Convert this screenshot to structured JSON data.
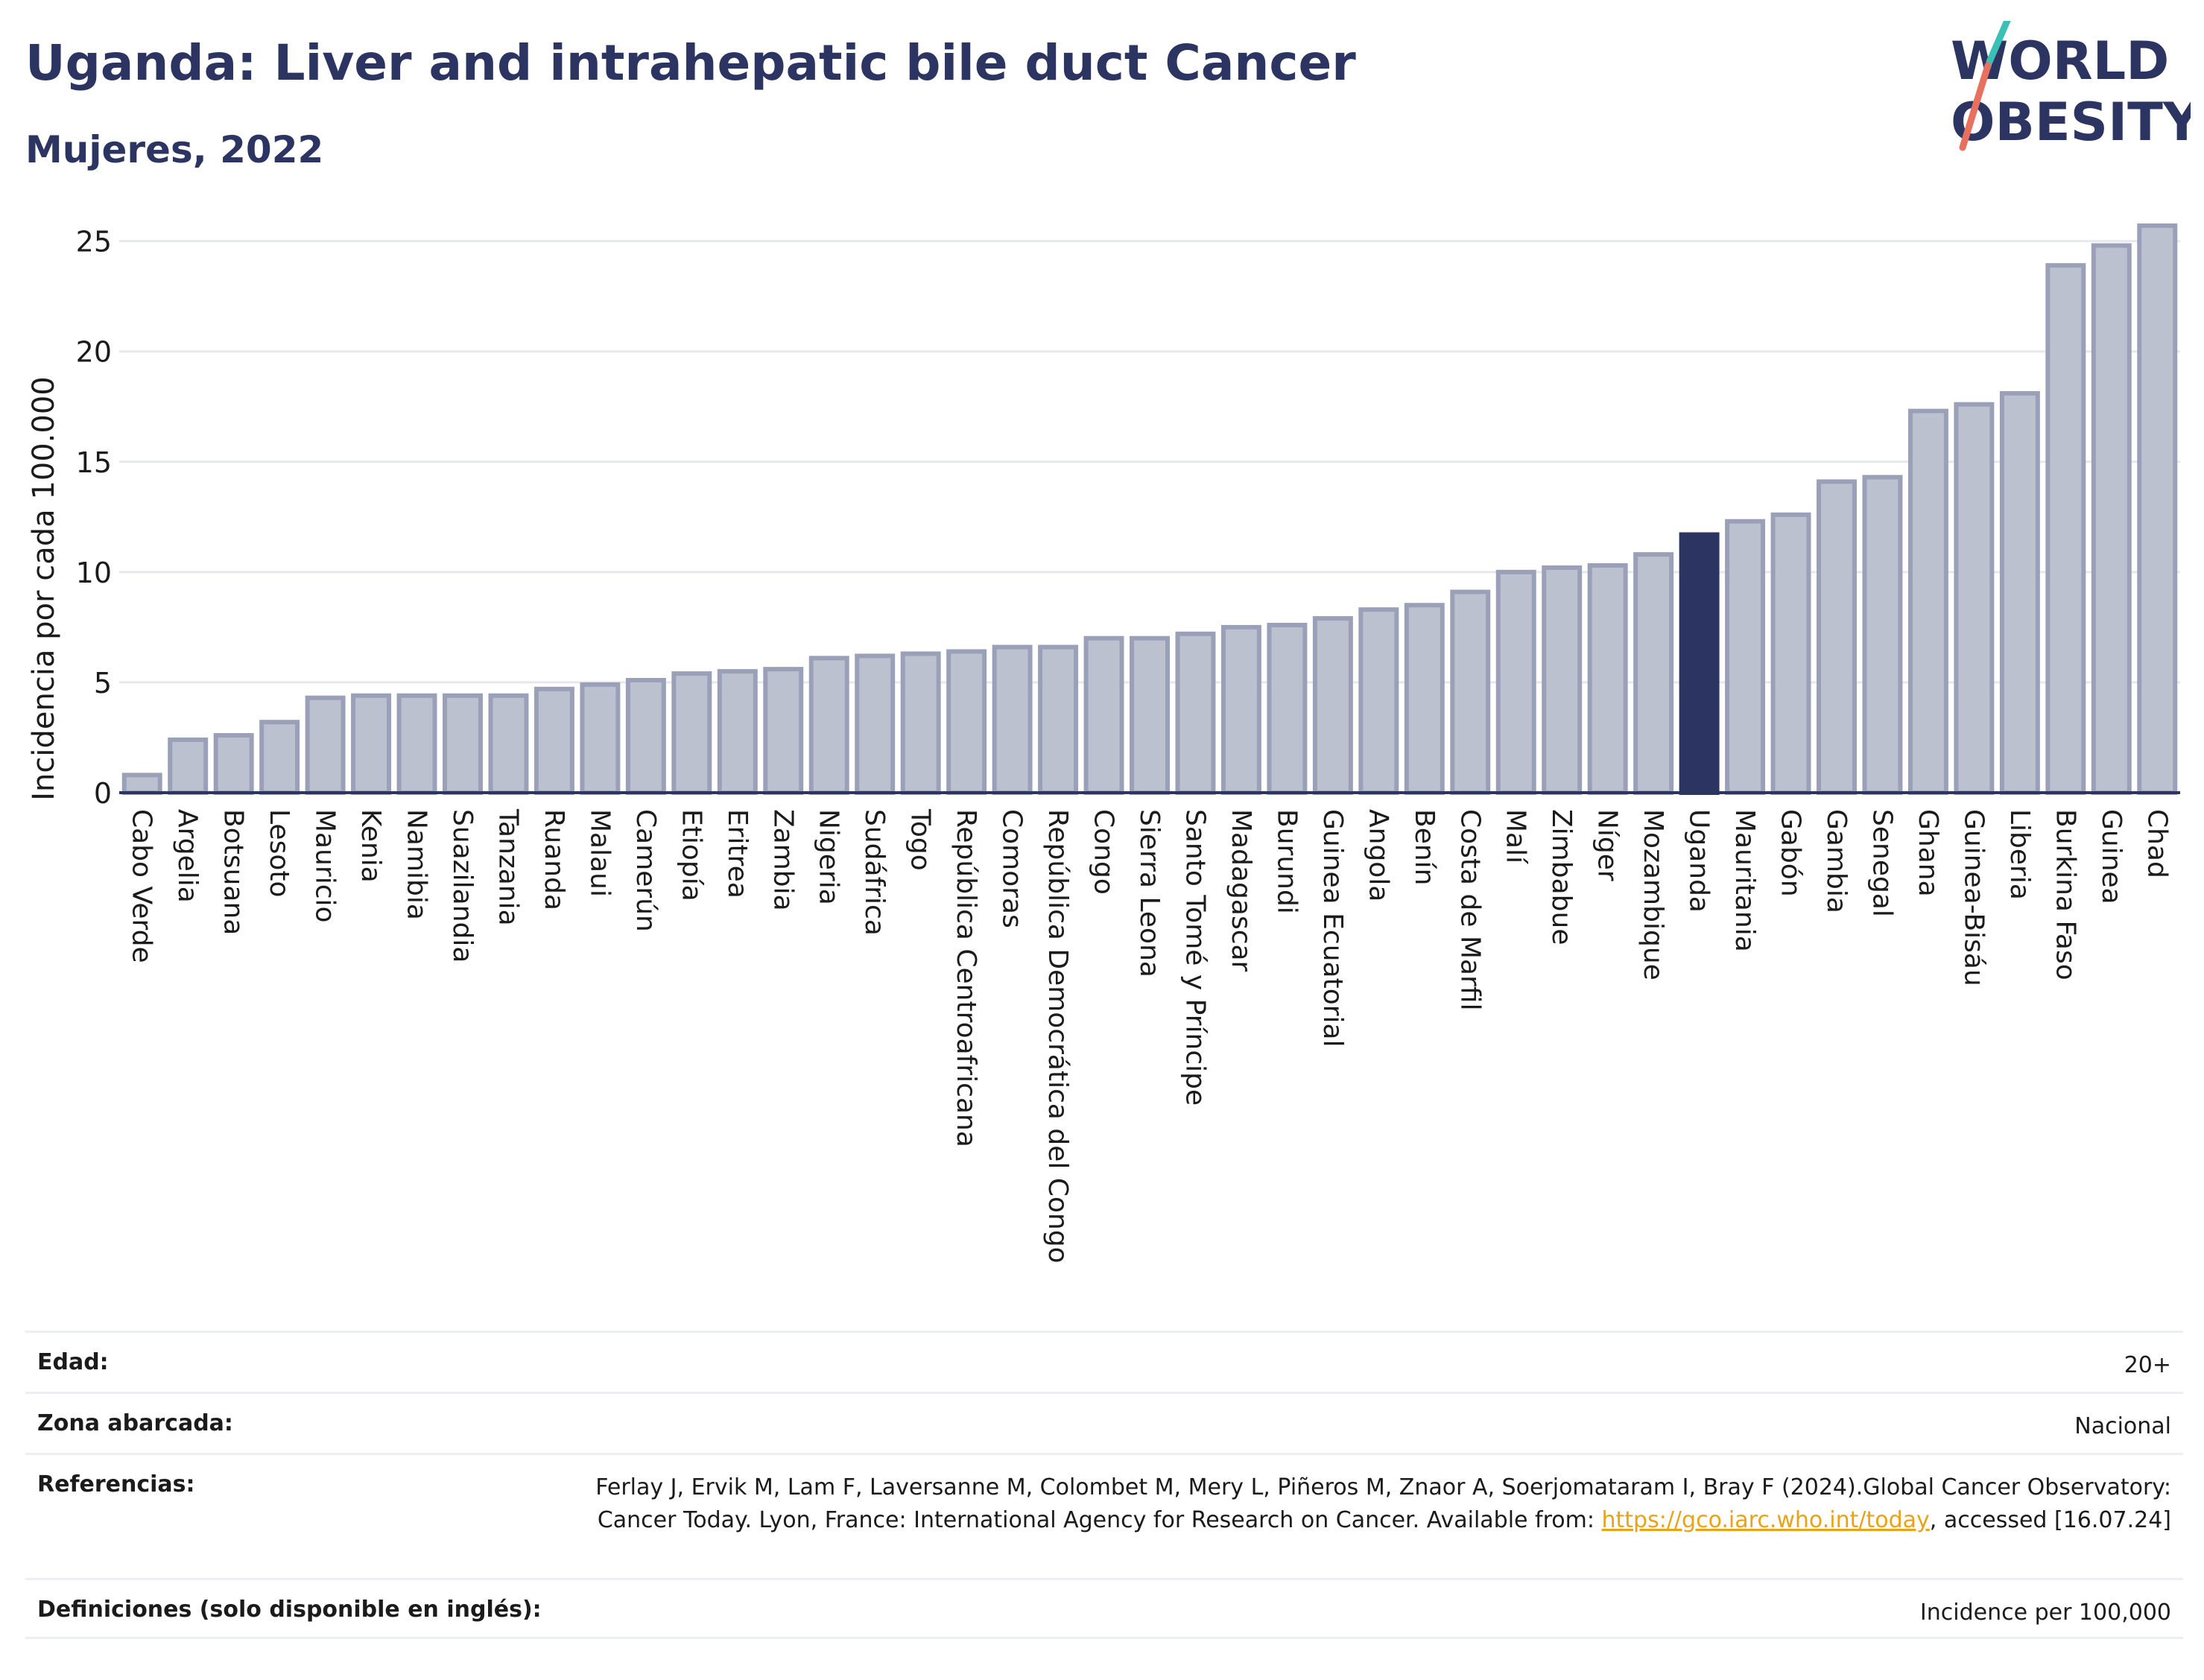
{
  "header": {
    "title": "Uganda: Liver and intrahepatic bile duct Cancer",
    "subtitle": "Mujeres, 2022"
  },
  "logo": {
    "line1": "WORLD",
    "line2": "OBESITY",
    "accent_colors": [
      "#3cbfb4",
      "#e8705f"
    ]
  },
  "colors": {
    "bar": "#bcc1d0",
    "bar_border": "#9aa0b8",
    "highlight": "#2c3562",
    "grid": "#e6e8ee",
    "axis": "#2c3562"
  },
  "chart_data": {
    "type": "bar",
    "title": "",
    "xlabel": "",
    "ylabel": "Incidencia por cada 100.000",
    "ylim": [
      0,
      26
    ],
    "yticks": [
      0,
      5,
      10,
      15,
      20,
      25
    ],
    "grid": true,
    "highlight": "Uganda",
    "categories": [
      "Cabo Verde",
      "Argelia",
      "Botsuana",
      "Lesoto",
      "Mauricio",
      "Kenia",
      "Namibia",
      "Suazilandia",
      "Tanzania",
      "Ruanda",
      "Malaui",
      "Camerún",
      "Etiopía",
      "Eritrea",
      "Zambia",
      "Nigeria",
      "Sudáfrica",
      "Togo",
      "República Centroafricana",
      "Comoras",
      "República Democrática del Congo",
      "Congo",
      "Sierra Leona",
      "Santo Tomé y Príncipe",
      "Madagascar",
      "Burundi",
      "Guinea Ecuatorial",
      "Angola",
      "Benín",
      "Costa de Marfil",
      "Malí",
      "Zimbabue",
      "Níger",
      "Mozambique",
      "Uganda",
      "Mauritania",
      "Gabón",
      "Gambia",
      "Senegal",
      "Ghana",
      "Guinea-Bisáu",
      "Liberia",
      "Burkina Faso",
      "Guinea",
      "Chad"
    ],
    "values": [
      0.8,
      2.4,
      2.6,
      3.2,
      4.3,
      4.4,
      4.4,
      4.4,
      4.4,
      4.7,
      4.9,
      5.1,
      5.4,
      5.5,
      5.6,
      6.1,
      6.2,
      6.3,
      6.4,
      6.6,
      6.6,
      7.0,
      7.0,
      7.2,
      7.5,
      7.6,
      7.9,
      8.3,
      8.5,
      9.1,
      10.0,
      10.2,
      10.3,
      10.8,
      11.7,
      12.3,
      12.6,
      14.1,
      14.3,
      17.3,
      17.6,
      18.1,
      23.9,
      24.8,
      25.7
    ]
  },
  "meta": {
    "rows": [
      {
        "label": "Edad:",
        "value": "20+"
      },
      {
        "label": "Zona abarcada:",
        "value": "Nacional"
      },
      {
        "label": "Referencias:",
        "value": "Ferlay J, Ervik M, Lam F, Laversanne M, Colombet M, Mery L, Piñeros M, Znaor A, Soerjomataram I, Bray F (2024).Global Cancer Observatory: Cancer Today. Lyon, France: International Agency for Research on Cancer. Available from: ",
        "link": "https://gco.iarc.who.int/today",
        "suffix": ", accessed [16.07.24]"
      },
      {
        "label": "Definiciones (solo disponible en inglés):",
        "value": "Incidence per 100,000"
      }
    ]
  }
}
